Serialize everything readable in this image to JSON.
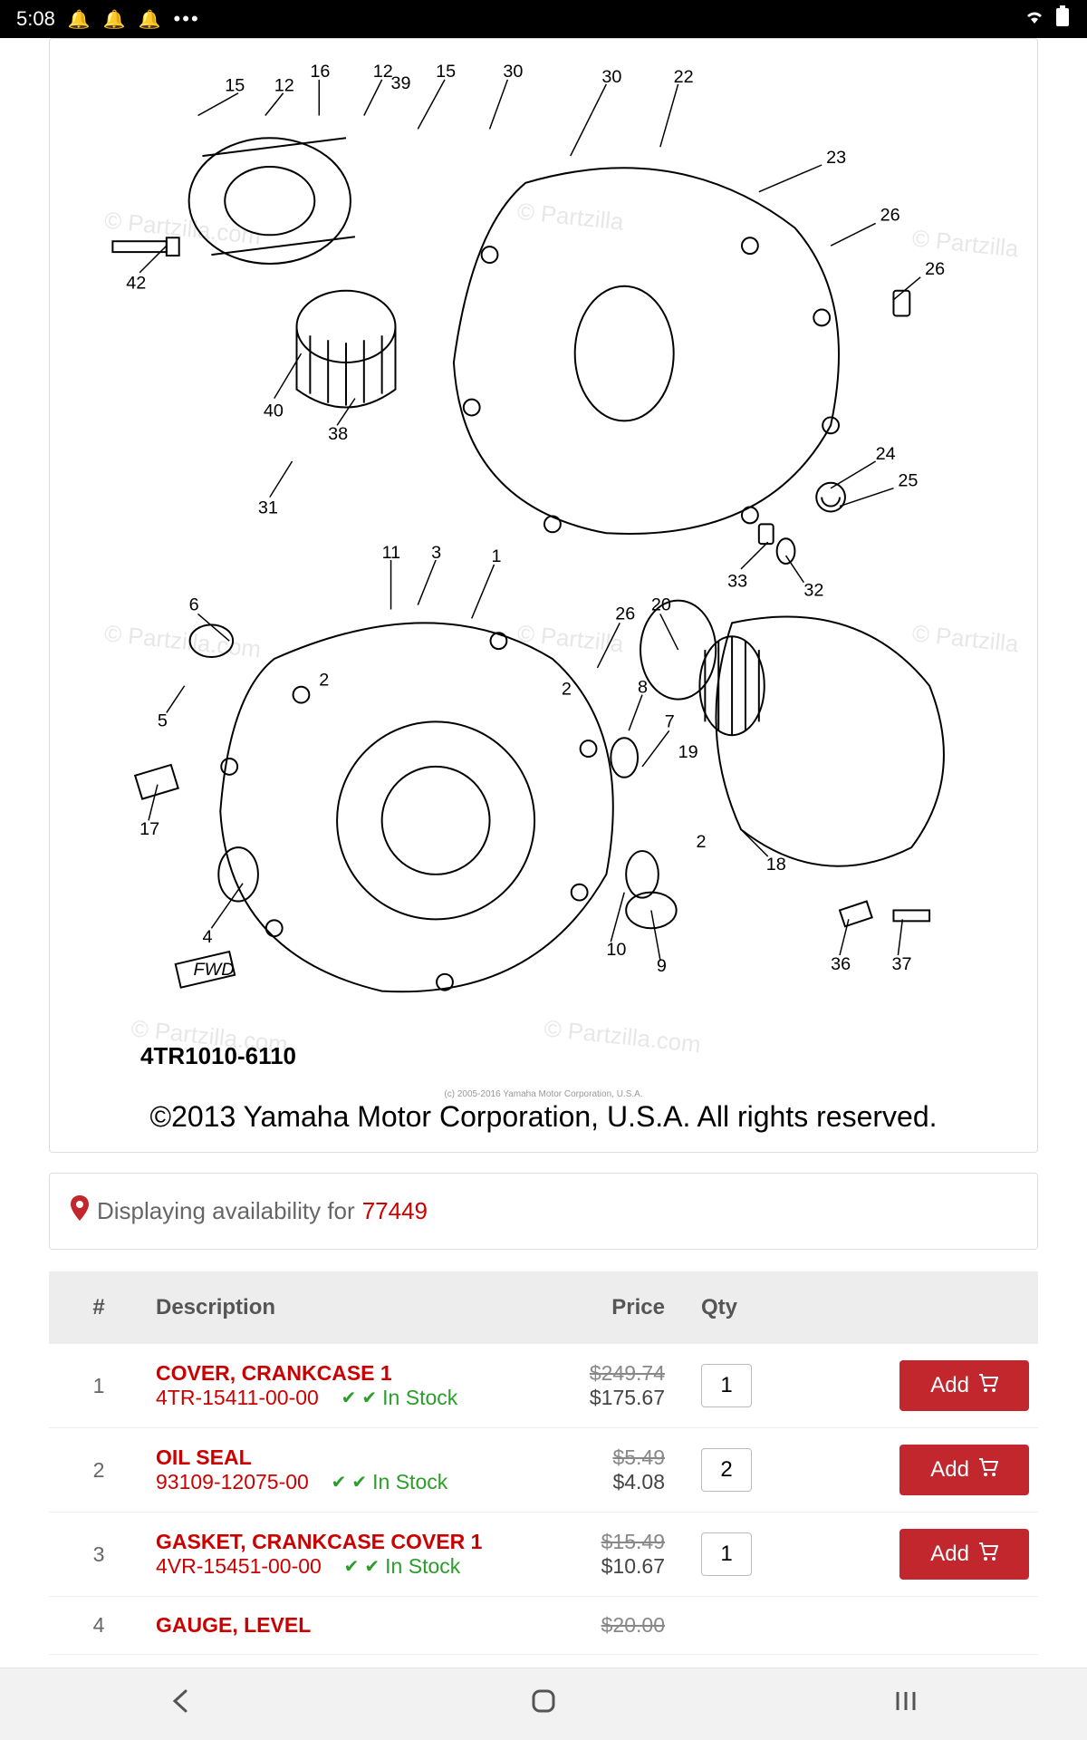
{
  "status": {
    "time": "5:08"
  },
  "diagram": {
    "copyright": "©2013 Yamaha Motor Corporation, U.S.A. All rights reserved.",
    "small_copyright": "(c) 2005-2016 Yamaha Motor Corporation, U.S.A.",
    "part_code": "4TR1010-6110",
    "watermark_text": "© Partzilla.com",
    "labels": [
      "1",
      "2",
      "3",
      "4",
      "5",
      "6",
      "7",
      "8",
      "9",
      "10",
      "11",
      "12",
      "15",
      "16",
      "17",
      "18",
      "19",
      "20",
      "22",
      "23",
      "24",
      "25",
      "26",
      "30",
      "31",
      "32",
      "33",
      "36",
      "37",
      "38",
      "39",
      "40",
      "42"
    ]
  },
  "availability": {
    "prefix": "Displaying availability for",
    "zip": "77449"
  },
  "table": {
    "headers": {
      "num": "#",
      "desc": "Description",
      "price": "Price",
      "qty": "Qty"
    },
    "add_label": "Add",
    "rows": [
      {
        "num": "1",
        "name": "COVER, CRANKCASE 1",
        "sku": "4TR-15411-00-00",
        "stock": "In Stock",
        "old_price": "$249.74",
        "price": "$175.67",
        "qty": "1"
      },
      {
        "num": "2",
        "name": "OIL SEAL",
        "sku": "93109-12075-00",
        "stock": "In Stock",
        "old_price": "$5.49",
        "price": "$4.08",
        "qty": "2"
      },
      {
        "num": "3",
        "name": "GASKET, CRANKCASE COVER 1",
        "sku": "4VR-15451-00-00",
        "stock": "In Stock",
        "old_price": "$15.49",
        "price": "$10.67",
        "qty": "1"
      },
      {
        "num": "4",
        "name": "GAUGE, LEVEL",
        "sku": "",
        "stock": "",
        "old_price": "$20.00",
        "price": "",
        "qty": ""
      }
    ]
  },
  "colors": {
    "accent": "#c1272d",
    "green": "#2a9d2a",
    "header_bg": "#ededed",
    "border": "#ddd"
  }
}
